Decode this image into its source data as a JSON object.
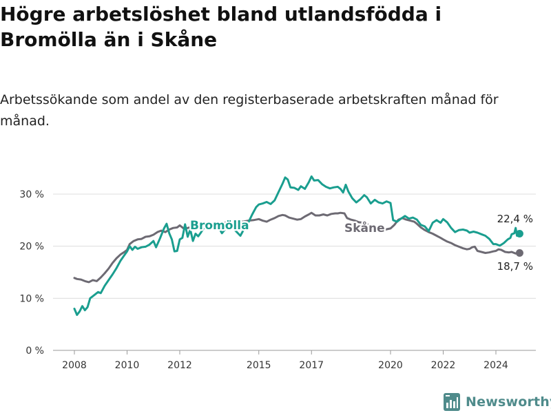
{
  "title": "Högre arbetslöshet bland utlandsfödda i Bromölla än i Skåne",
  "subtitle": "Arbetssökande som andel av den registerbaserade arbetskraften månad för månad.",
  "brand": {
    "name": "Newsworthy",
    "icon": "newsworthy-logo-icon",
    "color": "#4f8b8b"
  },
  "chart_data": {
    "type": "line",
    "title": "Högre arbetslöshet bland utlandsfödda i Bromölla än i Skåne",
    "subtitle": "Arbetssökande som andel av den registerbaserade arbetskraften månad för månad.",
    "xlabel": "",
    "ylabel": "",
    "xlim": [
      2008,
      2025.5
    ],
    "ylim": [
      0,
      30
    ],
    "x_ticks": [
      {
        "value": 2008,
        "label": "2008"
      },
      {
        "value": 2010,
        "label": "2010"
      },
      {
        "value": 2012,
        "label": "2012"
      },
      {
        "value": 2015,
        "label": "2015"
      },
      {
        "value": 2017,
        "label": "2017"
      },
      {
        "value": 2020,
        "label": "2020"
      },
      {
        "value": 2022,
        "label": "2022"
      },
      {
        "value": 2024,
        "label": "2024"
      }
    ],
    "y_ticks": [
      {
        "value": 0,
        "label": "0 %"
      },
      {
        "value": 10,
        "label": "10 %"
      },
      {
        "value": 20,
        "label": "20 %"
      },
      {
        "value": 30,
        "label": "30 %"
      }
    ],
    "grid": true,
    "series": [
      {
        "name": "Skåne",
        "label": "Skåne",
        "color": "#6d6a73",
        "end_label": "18,7 %",
        "points": [
          [
            2008.0,
            13.9
          ],
          [
            2008.1,
            13.7
          ],
          [
            2008.25,
            13.6
          ],
          [
            2008.4,
            13.3
          ],
          [
            2008.55,
            13.1
          ],
          [
            2008.7,
            13.5
          ],
          [
            2008.85,
            13.3
          ],
          [
            2009.0,
            14.0
          ],
          [
            2009.15,
            14.8
          ],
          [
            2009.3,
            15.7
          ],
          [
            2009.45,
            16.8
          ],
          [
            2009.6,
            17.7
          ],
          [
            2009.75,
            18.4
          ],
          [
            2009.9,
            18.9
          ],
          [
            2010.0,
            19.3
          ],
          [
            2010.1,
            20.4
          ],
          [
            2010.25,
            21.0
          ],
          [
            2010.4,
            21.3
          ],
          [
            2010.55,
            21.4
          ],
          [
            2010.7,
            21.8
          ],
          [
            2010.85,
            21.9
          ],
          [
            2011.0,
            22.2
          ],
          [
            2011.15,
            22.7
          ],
          [
            2011.3,
            23.0
          ],
          [
            2011.45,
            22.7
          ],
          [
            2011.6,
            23.2
          ],
          [
            2011.75,
            23.5
          ],
          [
            2011.9,
            23.6
          ],
          [
            2012.0,
            24.0
          ],
          [
            2012.15,
            23.4
          ],
          [
            2012.3,
            23.5
          ],
          [
            2012.45,
            23.7
          ],
          [
            2012.6,
            23.9
          ],
          [
            2012.75,
            23.8
          ],
          [
            2012.9,
            24.2
          ],
          [
            2013.0,
            24.1
          ],
          [
            2013.2,
            24.3
          ],
          [
            2013.4,
            24.5
          ],
          [
            2013.6,
            24.4
          ],
          [
            2013.8,
            24.6
          ],
          [
            2014.0,
            24.6
          ],
          [
            2014.2,
            24.8
          ],
          [
            2014.4,
            24.7
          ],
          [
            2014.6,
            24.9
          ],
          [
            2014.8,
            25.0
          ],
          [
            2015.0,
            25.2
          ],
          [
            2015.15,
            24.9
          ],
          [
            2015.3,
            24.7
          ],
          [
            2015.45,
            25.1
          ],
          [
            2015.6,
            25.4
          ],
          [
            2015.75,
            25.8
          ],
          [
            2015.9,
            26.0
          ],
          [
            2016.0,
            25.9
          ],
          [
            2016.15,
            25.5
          ],
          [
            2016.3,
            25.3
          ],
          [
            2016.45,
            25.1
          ],
          [
            2016.6,
            25.2
          ],
          [
            2016.75,
            25.7
          ],
          [
            2016.9,
            26.1
          ],
          [
            2017.0,
            26.4
          ],
          [
            2017.15,
            25.9
          ],
          [
            2017.3,
            25.9
          ],
          [
            2017.45,
            26.1
          ],
          [
            2017.6,
            25.9
          ],
          [
            2017.75,
            26.2
          ],
          [
            2017.9,
            26.3
          ],
          [
            2018.0,
            26.3
          ],
          [
            2018.1,
            26.4
          ],
          [
            2018.25,
            26.3
          ],
          [
            2018.35,
            25.4
          ],
          [
            2018.5,
            25.1
          ],
          [
            2018.65,
            24.9
          ],
          [
            2018.8,
            24.6
          ],
          [
            2019.0,
            24.5
          ],
          [
            2019.2,
            24.0
          ],
          [
            2019.4,
            23.7
          ],
          [
            2019.6,
            23.4
          ],
          [
            2019.8,
            23.2
          ],
          [
            2020.0,
            23.4
          ],
          [
            2020.15,
            24.1
          ],
          [
            2020.3,
            25.1
          ],
          [
            2020.45,
            25.4
          ],
          [
            2020.6,
            25.1
          ],
          [
            2020.75,
            24.9
          ],
          [
            2020.9,
            24.7
          ],
          [
            2021.0,
            24.3
          ],
          [
            2021.15,
            23.6
          ],
          [
            2021.3,
            23.1
          ],
          [
            2021.45,
            22.7
          ],
          [
            2021.6,
            22.4
          ],
          [
            2021.75,
            22.0
          ],
          [
            2021.9,
            21.6
          ],
          [
            2022.0,
            21.3
          ],
          [
            2022.15,
            20.9
          ],
          [
            2022.3,
            20.6
          ],
          [
            2022.45,
            20.2
          ],
          [
            2022.6,
            19.9
          ],
          [
            2022.75,
            19.6
          ],
          [
            2022.9,
            19.4
          ],
          [
            2023.0,
            19.5
          ],
          [
            2023.1,
            19.8
          ],
          [
            2023.2,
            19.9
          ],
          [
            2023.3,
            19.1
          ],
          [
            2023.45,
            18.9
          ],
          [
            2023.6,
            18.7
          ],
          [
            2023.75,
            18.8
          ],
          [
            2023.9,
            19.0
          ],
          [
            2024.0,
            19.1
          ],
          [
            2024.1,
            19.4
          ],
          [
            2024.2,
            19.3
          ],
          [
            2024.35,
            18.9
          ],
          [
            2024.5,
            18.8
          ],
          [
            2024.6,
            18.9
          ],
          [
            2024.75,
            18.6
          ],
          [
            2024.9,
            18.7
          ]
        ]
      },
      {
        "name": "Bromölla",
        "label": "Bromölla",
        "color": "#1a9e8f",
        "end_label": "22,4 %",
        "points": [
          [
            2008.0,
            8.0
          ],
          [
            2008.1,
            6.8
          ],
          [
            2008.2,
            7.5
          ],
          [
            2008.3,
            8.5
          ],
          [
            2008.4,
            7.7
          ],
          [
            2008.5,
            8.3
          ],
          [
            2008.6,
            10.0
          ],
          [
            2008.75,
            10.6
          ],
          [
            2008.9,
            11.2
          ],
          [
            2009.0,
            11.0
          ],
          [
            2009.15,
            12.4
          ],
          [
            2009.3,
            13.5
          ],
          [
            2009.45,
            14.6
          ],
          [
            2009.6,
            15.8
          ],
          [
            2009.75,
            17.2
          ],
          [
            2009.9,
            18.3
          ],
          [
            2010.0,
            19.0
          ],
          [
            2010.1,
            20.0
          ],
          [
            2010.2,
            19.3
          ],
          [
            2010.3,
            19.9
          ],
          [
            2010.4,
            19.5
          ],
          [
            2010.55,
            19.8
          ],
          [
            2010.7,
            19.9
          ],
          [
            2010.85,
            20.3
          ],
          [
            2011.0,
            21.0
          ],
          [
            2011.1,
            19.8
          ],
          [
            2011.25,
            21.5
          ],
          [
            2011.4,
            23.4
          ],
          [
            2011.5,
            24.3
          ],
          [
            2011.6,
            22.5
          ],
          [
            2011.7,
            21.3
          ],
          [
            2011.8,
            19.0
          ],
          [
            2011.9,
            19.1
          ],
          [
            2012.0,
            21.3
          ],
          [
            2012.1,
            21.6
          ],
          [
            2012.2,
            24.2
          ],
          [
            2012.3,
            21.8
          ],
          [
            2012.4,
            23.2
          ],
          [
            2012.5,
            21.0
          ],
          [
            2012.6,
            22.4
          ],
          [
            2012.7,
            21.9
          ],
          [
            2012.8,
            22.6
          ],
          [
            2012.9,
            23.4
          ],
          [
            2013.0,
            23.9
          ],
          [
            2013.15,
            24.5
          ],
          [
            2013.3,
            24.1
          ],
          [
            2013.45,
            23.8
          ],
          [
            2013.6,
            22.5
          ],
          [
            2013.75,
            23.4
          ],
          [
            2013.9,
            24.0
          ],
          [
            2014.0,
            23.6
          ],
          [
            2014.15,
            22.8
          ],
          [
            2014.3,
            22.0
          ],
          [
            2014.45,
            23.4
          ],
          [
            2014.6,
            24.5
          ],
          [
            2014.75,
            26.1
          ],
          [
            2014.9,
            27.5
          ],
          [
            2015.0,
            28.0
          ],
          [
            2015.15,
            28.2
          ],
          [
            2015.3,
            28.5
          ],
          [
            2015.45,
            28.1
          ],
          [
            2015.6,
            28.8
          ],
          [
            2015.75,
            30.4
          ],
          [
            2015.9,
            32.0
          ],
          [
            2016.0,
            33.2
          ],
          [
            2016.1,
            32.8
          ],
          [
            2016.2,
            31.3
          ],
          [
            2016.35,
            31.2
          ],
          [
            2016.5,
            30.8
          ],
          [
            2016.6,
            31.5
          ],
          [
            2016.75,
            31.0
          ],
          [
            2016.9,
            32.3
          ],
          [
            2017.0,
            33.4
          ],
          [
            2017.1,
            32.6
          ],
          [
            2017.25,
            32.7
          ],
          [
            2017.4,
            31.9
          ],
          [
            2017.55,
            31.4
          ],
          [
            2017.7,
            31.1
          ],
          [
            2017.85,
            31.3
          ],
          [
            2018.0,
            31.4
          ],
          [
            2018.1,
            31.0
          ],
          [
            2018.2,
            30.3
          ],
          [
            2018.3,
            31.8
          ],
          [
            2018.4,
            30.5
          ],
          [
            2018.55,
            29.2
          ],
          [
            2018.7,
            28.4
          ],
          [
            2018.85,
            29.0
          ],
          [
            2019.0,
            29.8
          ],
          [
            2019.1,
            29.4
          ],
          [
            2019.25,
            28.2
          ],
          [
            2019.4,
            28.9
          ],
          [
            2019.55,
            28.4
          ],
          [
            2019.7,
            28.2
          ],
          [
            2019.85,
            28.6
          ],
          [
            2020.0,
            28.3
          ],
          [
            2020.1,
            25.0
          ],
          [
            2020.25,
            24.7
          ],
          [
            2020.4,
            25.3
          ],
          [
            2020.55,
            25.8
          ],
          [
            2020.7,
            25.3
          ],
          [
            2020.85,
            25.5
          ],
          [
            2021.0,
            25.1
          ],
          [
            2021.15,
            24.1
          ],
          [
            2021.3,
            23.8
          ],
          [
            2021.45,
            22.9
          ],
          [
            2021.6,
            24.5
          ],
          [
            2021.75,
            25.0
          ],
          [
            2021.9,
            24.5
          ],
          [
            2022.0,
            25.2
          ],
          [
            2022.15,
            24.6
          ],
          [
            2022.3,
            23.5
          ],
          [
            2022.45,
            22.7
          ],
          [
            2022.6,
            23.1
          ],
          [
            2022.75,
            23.2
          ],
          [
            2022.9,
            23.0
          ],
          [
            2023.0,
            22.6
          ],
          [
            2023.15,
            22.8
          ],
          [
            2023.3,
            22.6
          ],
          [
            2023.45,
            22.3
          ],
          [
            2023.6,
            22.0
          ],
          [
            2023.75,
            21.4
          ],
          [
            2023.9,
            20.4
          ],
          [
            2024.0,
            20.4
          ],
          [
            2024.15,
            20.1
          ],
          [
            2024.3,
            20.6
          ],
          [
            2024.45,
            21.3
          ],
          [
            2024.55,
            21.6
          ],
          [
            2024.6,
            22.3
          ],
          [
            2024.7,
            22.5
          ],
          [
            2024.75,
            23.5
          ],
          [
            2024.8,
            22.0
          ],
          [
            2024.9,
            22.4
          ]
        ]
      }
    ]
  }
}
